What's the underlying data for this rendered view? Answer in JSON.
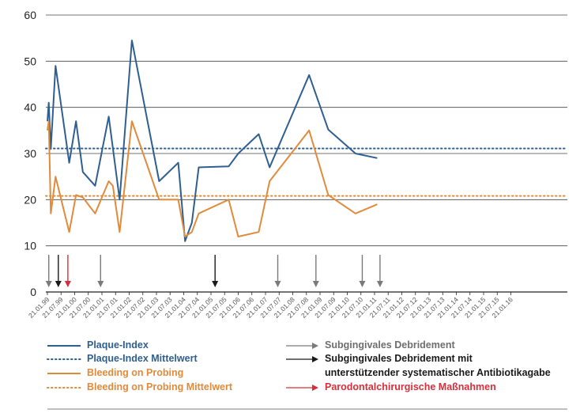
{
  "colors": {
    "plaque": "#2f5f8f",
    "bleeding": "#e08a3c",
    "grey_arrow": "#7a7a7a",
    "black_arrow": "#1a1a1a",
    "red_arrow": "#d62f3b",
    "legend_grey_text": "#6e6e6e",
    "axis": "#333333"
  },
  "chart_data": {
    "type": "line",
    "ylim": [
      0,
      60
    ],
    "yticks": [
      0,
      10,
      20,
      30,
      40,
      50,
      60
    ],
    "categories": [
      "21.01.99",
      "21.07.99",
      "21.01.00",
      "21.07.00",
      "21.01.01",
      "21.07.01",
      "21.01.02",
      "21.07.02",
      "21.01.03",
      "21.07.03",
      "21.01.04",
      "21.07.04",
      "21.01.05",
      "21.07.05",
      "21.01.06",
      "21.07.06",
      "21.01.07",
      "21.07.07",
      "21.01.08",
      "21.07.08",
      "21.01.09",
      "21.07.09",
      "21.01.10",
      "21.07.10",
      "21.01.11",
      "21.07.11",
      "21.01.12",
      "21.07.12",
      "21.01.13",
      "21.07.13",
      "21.01.14",
      "21.07.14",
      "21.01.15",
      "21.07.15",
      "21.01.16"
    ],
    "series": [
      {
        "name": "Plaque-Index",
        "points": [
          [
            0,
            37
          ],
          [
            0.1,
            41
          ],
          [
            0.25,
            31
          ],
          [
            0.6,
            49
          ],
          [
            1.6,
            28
          ],
          [
            2.1,
            37
          ],
          [
            2.6,
            26
          ],
          [
            3.5,
            23
          ],
          [
            4.5,
            38
          ],
          [
            5.3,
            20
          ],
          [
            6.2,
            54.5
          ],
          [
            8.2,
            24
          ],
          [
            9.6,
            28
          ],
          [
            10.1,
            11
          ],
          [
            10.6,
            15
          ],
          [
            11.1,
            27
          ],
          [
            13.3,
            27.2
          ],
          [
            14.0,
            30
          ],
          [
            15.5,
            34.2
          ],
          [
            16.3,
            27
          ],
          [
            19.2,
            47
          ],
          [
            20.6,
            35.2
          ],
          [
            22.6,
            30
          ],
          [
            24.2,
            29
          ]
        ]
      },
      {
        "name": "Plaque-Index Mittelwert",
        "style": "dotted",
        "value": 31.1
      },
      {
        "name": "Bleeding on Probing",
        "points": [
          [
            0,
            35
          ],
          [
            0.1,
            37
          ],
          [
            0.25,
            17
          ],
          [
            0.6,
            25
          ],
          [
            1.6,
            13
          ],
          [
            2.1,
            21
          ],
          [
            2.6,
            20.5
          ],
          [
            3.5,
            17
          ],
          [
            4.5,
            24
          ],
          [
            4.8,
            23
          ],
          [
            5.3,
            13
          ],
          [
            6.2,
            37
          ],
          [
            8.2,
            20
          ],
          [
            9.6,
            20
          ],
          [
            10.1,
            12
          ],
          [
            10.6,
            13
          ],
          [
            11.1,
            17
          ],
          [
            13.3,
            20
          ],
          [
            14.0,
            12
          ],
          [
            15.5,
            13
          ],
          [
            16.3,
            24
          ],
          [
            19.2,
            35
          ],
          [
            20.6,
            21
          ],
          [
            22.6,
            17
          ],
          [
            24.2,
            19
          ]
        ]
      },
      {
        "name": "Bleeding on Probing Mittelwert",
        "style": "dotted",
        "value": 20.8
      }
    ],
    "event_arrows": [
      {
        "x": 0.1,
        "type": "grey"
      },
      {
        "x": 0.8,
        "type": "black"
      },
      {
        "x": 1.5,
        "type": "red"
      },
      {
        "x": 3.9,
        "type": "grey"
      },
      {
        "x": 12.3,
        "type": "black"
      },
      {
        "x": 16.9,
        "type": "grey"
      },
      {
        "x": 19.7,
        "type": "grey"
      },
      {
        "x": 23.1,
        "type": "grey"
      },
      {
        "x": 24.4,
        "type": "grey"
      }
    ]
  },
  "legend": {
    "plaque": "Plaque-Index",
    "plaque_mean": "Plaque-Index Mittelwert",
    "bleeding": "Bleeding on Probing",
    "bleeding_mean": "Bleeding on Probing Mittelwert",
    "grey_arrow": "Subgingivales Debridement",
    "black_arrow_line1": "Subgingivales Debridement mit",
    "black_arrow_line2": "unterstützender systematischer Antibiotikagabe",
    "red_arrow": "Parodontalchirurgische Maßnahmen"
  }
}
